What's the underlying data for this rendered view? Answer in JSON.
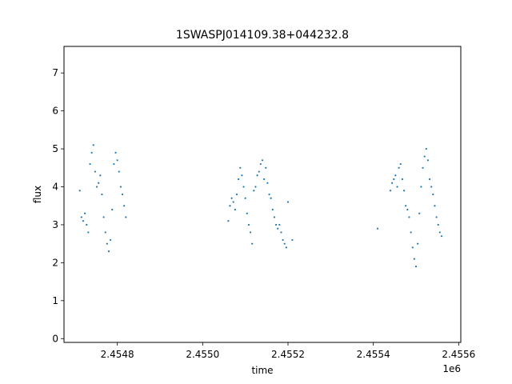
{
  "chart_data": {
    "type": "scatter",
    "title": "1SWASPJ014109.38+044232.8",
    "xlabel": "time",
    "ylabel": "flux",
    "x_offset_label": "1e6",
    "xlim": [
      2454675,
      2455605
    ],
    "ylim": [
      -0.1,
      7.7
    ],
    "x_ticks": [
      2454800,
      2455000,
      2455200,
      2455400,
      2455600
    ],
    "x_tick_labels": [
      "2.4548",
      "2.4550",
      "2.4552",
      "2.4554",
      "2.4556"
    ],
    "y_ticks": [
      0,
      1,
      2,
      3,
      4,
      5,
      6,
      7
    ],
    "y_tick_labels": [
      "0",
      "1",
      "2",
      "3",
      "4",
      "5",
      "6",
      "7"
    ],
    "grid": false,
    "point_color": "#1f77b4",
    "series": [
      {
        "name": "",
        "x": [
          2454712,
          2454716,
          2454720,
          2454724,
          2454728,
          2454732,
          2454736,
          2454740,
          2454744,
          2454748,
          2454752,
          2454756,
          2454760,
          2454764,
          2454768,
          2454772,
          2454776,
          2454780,
          2454784,
          2454788,
          2454792,
          2454796,
          2454800,
          2454804,
          2454808,
          2454812,
          2454816,
          2454820,
          2455060,
          2455064,
          2455068,
          2455072,
          2455076,
          2455080,
          2455084,
          2455088,
          2455092,
          2455096,
          2455100,
          2455104,
          2455108,
          2455112,
          2455116,
          2455120,
          2455124,
          2455128,
          2455132,
          2455136,
          2455140,
          2455144,
          2455148,
          2455152,
          2455156,
          2455160,
          2455164,
          2455168,
          2455172,
          2455176,
          2455180,
          2455184,
          2455188,
          2455192,
          2455196,
          2455200,
          2455210,
          2455410,
          2455440,
          2455444,
          2455448,
          2455452,
          2455456,
          2455460,
          2455464,
          2455468,
          2455472,
          2455476,
          2455480,
          2455484,
          2455488,
          2455492,
          2455496,
          2455500,
          2455504,
          2455508,
          2455512,
          2455516,
          2455520,
          2455524,
          2455528,
          2455532,
          2455536,
          2455540,
          2455544,
          2455548,
          2455552,
          2455556,
          2455560
        ],
        "y": [
          3.9,
          3.2,
          3.1,
          3.3,
          3.0,
          2.8,
          4.6,
          4.9,
          5.1,
          4.4,
          4.0,
          4.1,
          4.3,
          3.8,
          3.2,
          2.8,
          2.5,
          2.3,
          2.6,
          3.4,
          4.6,
          4.9,
          4.7,
          4.4,
          4.0,
          3.8,
          3.5,
          3.2,
          3.1,
          3.5,
          3.7,
          3.6,
          3.4,
          3.8,
          4.2,
          4.5,
          4.3,
          4.0,
          3.7,
          3.3,
          3.0,
          2.8,
          2.5,
          3.9,
          4.0,
          4.3,
          4.4,
          4.6,
          4.7,
          4.2,
          4.5,
          4.1,
          3.8,
          3.7,
          3.4,
          3.2,
          3.0,
          2.9,
          3.0,
          2.8,
          2.6,
          2.5,
          2.4,
          3.6,
          2.6,
          2.9,
          3.9,
          4.1,
          4.2,
          4.3,
          4.0,
          4.5,
          4.6,
          4.2,
          3.9,
          3.5,
          3.4,
          3.2,
          2.8,
          2.4,
          2.1,
          1.9,
          2.5,
          3.3,
          4.0,
          4.5,
          4.8,
          5.0,
          4.7,
          4.2,
          4.0,
          3.8,
          3.5,
          3.2,
          3.0,
          2.8,
          2.7
        ]
      }
    ]
  }
}
